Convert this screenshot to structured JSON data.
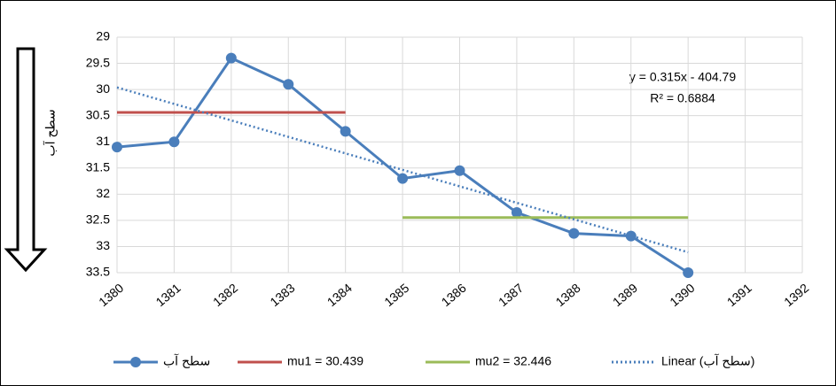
{
  "chart_data": {
    "type": "line",
    "x": [
      1380,
      1381,
      1382,
      1383,
      1384,
      1385,
      1386,
      1387,
      1388,
      1389,
      1390
    ],
    "series": [
      {
        "name": "سطح آب",
        "color": "#4a7ebb",
        "values": [
          31.1,
          31.0,
          29.4,
          29.9,
          30.8,
          31.7,
          31.55,
          32.35,
          32.75,
          32.8,
          33.5
        ]
      },
      {
        "name": "mu1 = 30.439",
        "color": "#c0504d",
        "x": [
          1380,
          1384
        ],
        "values": [
          30.439,
          30.439
        ]
      },
      {
        "name": "mu2 = 32.446",
        "color": "#9bbb59",
        "x": [
          1385,
          1390
        ],
        "values": [
          32.446,
          32.446
        ]
      },
      {
        "name": "Linear (سطح آب)",
        "color": "#4a7ebb",
        "dashed": true,
        "x": [
          1380,
          1390
        ],
        "values": [
          29.96,
          33.11
        ]
      }
    ],
    "y_label": "سطح آب",
    "annotations": [
      "y = 0.315x - 404.79",
      "R² = 0.6884"
    ],
    "xlim": [
      1380,
      1392
    ],
    "xticks": [
      1380,
      1381,
      1382,
      1383,
      1384,
      1385,
      1386,
      1387,
      1388,
      1389,
      1390,
      1391,
      1392
    ],
    "ylim": [
      29,
      33.5
    ],
    "yticks": [
      29,
      29.5,
      30,
      30.5,
      31,
      31.5,
      32,
      32.5,
      33,
      33.5
    ],
    "y_inverted": true,
    "grid": true,
    "legend": "bottom"
  }
}
